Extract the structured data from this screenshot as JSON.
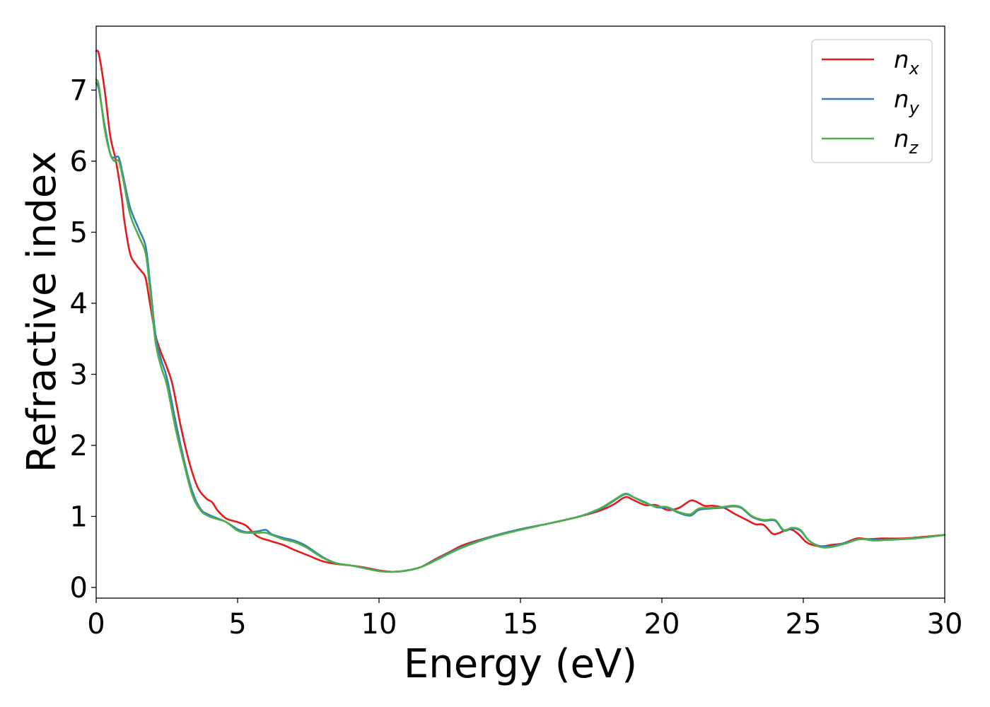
{
  "chart_data": {
    "type": "line",
    "xlabel": "Energy (eV)",
    "ylabel": "Refractive index",
    "xlim": [
      0,
      30
    ],
    "ylim": [
      -0.15,
      7.9
    ],
    "xticks": [
      "0",
      "5",
      "10",
      "15",
      "20",
      "25",
      "30"
    ],
    "yticks": [
      "0",
      "1",
      "2",
      "3",
      "4",
      "5",
      "6",
      "7"
    ],
    "grid": false,
    "legend_position": "top-right",
    "series": [
      {
        "name": "n",
        "sub": "x",
        "color": "#e41a1c",
        "x": [
          0,
          0.1,
          0.3,
          0.5,
          0.7,
          0.9,
          1.0,
          1.2,
          1.4,
          1.6,
          1.75,
          1.9,
          2.1,
          2.3,
          2.5,
          2.7,
          3.0,
          3.3,
          3.6,
          3.9,
          4.1,
          4.3,
          4.6,
          5.0,
          5.3,
          5.7,
          6.2,
          6.6,
          7.0,
          7.5,
          8.0,
          8.5,
          9.0,
          9.5,
          10.0,
          10.5,
          11.0,
          11.5,
          12.0,
          12.5,
          13.0,
          14.0,
          15.0,
          16.0,
          17.0,
          17.8,
          18.3,
          18.7,
          19.0,
          19.4,
          19.8,
          20.2,
          20.6,
          21.0,
          21.2,
          21.5,
          21.8,
          22.2,
          22.6,
          23.0,
          23.3,
          23.6,
          23.9,
          24.1,
          24.5,
          24.8,
          25.1,
          25.4,
          25.7,
          26.0,
          26.4,
          26.9,
          27.3,
          27.8,
          28.5,
          29.2,
          30.0
        ],
        "y": [
          7.55,
          7.5,
          7.0,
          6.35,
          6.0,
          5.5,
          5.15,
          4.7,
          4.55,
          4.45,
          4.35,
          4.0,
          3.55,
          3.3,
          3.1,
          2.85,
          2.25,
          1.75,
          1.4,
          1.25,
          1.2,
          1.08,
          0.97,
          0.92,
          0.87,
          0.72,
          0.65,
          0.6,
          0.53,
          0.45,
          0.37,
          0.33,
          0.31,
          0.28,
          0.24,
          0.22,
          0.24,
          0.29,
          0.4,
          0.5,
          0.6,
          0.72,
          0.82,
          0.9,
          0.99,
          1.08,
          1.17,
          1.27,
          1.23,
          1.16,
          1.16,
          1.09,
          1.12,
          1.22,
          1.21,
          1.15,
          1.15,
          1.12,
          1.03,
          0.95,
          0.89,
          0.88,
          0.76,
          0.76,
          0.82,
          0.76,
          0.64,
          0.59,
          0.58,
          0.6,
          0.62,
          0.69,
          0.68,
          0.69,
          0.69,
          0.71,
          0.74
        ]
      },
      {
        "name": "n",
        "sub": "y",
        "color": "#377eb8",
        "x": [
          0,
          0.1,
          0.3,
          0.5,
          0.65,
          0.8,
          0.95,
          1.2,
          1.5,
          1.75,
          1.9,
          2.1,
          2.3,
          2.5,
          2.8,
          3.1,
          3.4,
          3.7,
          4.0,
          4.3,
          4.6,
          5.0,
          5.3,
          5.7,
          6.0,
          6.2,
          6.6,
          7.0,
          7.4,
          8.0,
          8.5,
          9.0,
          9.5,
          10.0,
          10.5,
          11.0,
          11.5,
          12.0,
          12.5,
          13.0,
          14.0,
          15.0,
          16.0,
          17.0,
          17.8,
          18.3,
          18.7,
          19.0,
          19.4,
          19.8,
          20.2,
          20.6,
          21.0,
          21.3,
          21.7,
          22.1,
          22.5,
          22.8,
          23.2,
          23.6,
          24.0,
          24.3,
          24.6,
          24.9,
          25.2,
          25.6,
          26.0,
          26.5,
          27.0,
          27.5,
          28.0,
          28.5,
          29.2,
          30.0
        ],
        "y": [
          7.1,
          7.0,
          6.5,
          6.1,
          6.05,
          6.05,
          5.8,
          5.35,
          5.05,
          4.8,
          4.3,
          3.55,
          3.2,
          2.95,
          2.35,
          1.8,
          1.35,
          1.1,
          1.02,
          0.97,
          0.92,
          0.82,
          0.78,
          0.79,
          0.81,
          0.75,
          0.7,
          0.66,
          0.59,
          0.43,
          0.34,
          0.31,
          0.27,
          0.23,
          0.22,
          0.24,
          0.29,
          0.39,
          0.49,
          0.58,
          0.72,
          0.82,
          0.9,
          0.99,
          1.1,
          1.22,
          1.31,
          1.27,
          1.2,
          1.13,
          1.12,
          1.05,
          1.01,
          1.09,
          1.11,
          1.12,
          1.14,
          1.12,
          0.99,
          0.94,
          0.94,
          0.8,
          0.83,
          0.8,
          0.66,
          0.58,
          0.58,
          0.63,
          0.68,
          0.67,
          0.67,
          0.68,
          0.7,
          0.74
        ]
      },
      {
        "name": "n",
        "sub": "z",
        "color": "#4daf4a",
        "x": [
          0,
          0.1,
          0.3,
          0.5,
          0.65,
          0.8,
          0.95,
          1.2,
          1.5,
          1.75,
          1.9,
          2.1,
          2.3,
          2.5,
          2.8,
          3.1,
          3.4,
          3.7,
          4.0,
          4.3,
          4.6,
          5.0,
          5.3,
          5.7,
          6.0,
          6.2,
          6.6,
          7.0,
          7.4,
          8.0,
          8.5,
          9.0,
          9.5,
          10.0,
          10.5,
          11.0,
          11.5,
          12.0,
          12.5,
          13.0,
          14.0,
          15.0,
          16.0,
          17.0,
          17.8,
          18.3,
          18.7,
          19.0,
          19.4,
          19.8,
          20.2,
          20.6,
          21.0,
          21.3,
          21.7,
          22.1,
          22.5,
          22.8,
          23.2,
          23.6,
          24.0,
          24.3,
          24.6,
          24.9,
          25.2,
          25.6,
          26.0,
          26.5,
          27.0,
          27.5,
          28.0,
          28.5,
          29.2,
          30.0
        ],
        "y": [
          7.15,
          7.05,
          6.45,
          6.1,
          6.0,
          6.0,
          5.75,
          5.25,
          4.95,
          4.7,
          4.2,
          3.45,
          3.1,
          2.85,
          2.25,
          1.75,
          1.3,
          1.08,
          1.0,
          0.96,
          0.92,
          0.8,
          0.77,
          0.77,
          0.77,
          0.74,
          0.68,
          0.64,
          0.57,
          0.42,
          0.34,
          0.31,
          0.27,
          0.23,
          0.22,
          0.24,
          0.29,
          0.38,
          0.48,
          0.57,
          0.71,
          0.81,
          0.9,
          0.99,
          1.11,
          1.23,
          1.32,
          1.27,
          1.19,
          1.14,
          1.13,
          1.06,
          1.03,
          1.11,
          1.12,
          1.13,
          1.15,
          1.13,
          1.0,
          0.95,
          0.95,
          0.81,
          0.84,
          0.81,
          0.66,
          0.57,
          0.57,
          0.62,
          0.68,
          0.66,
          0.67,
          0.68,
          0.7,
          0.74
        ]
      }
    ]
  }
}
